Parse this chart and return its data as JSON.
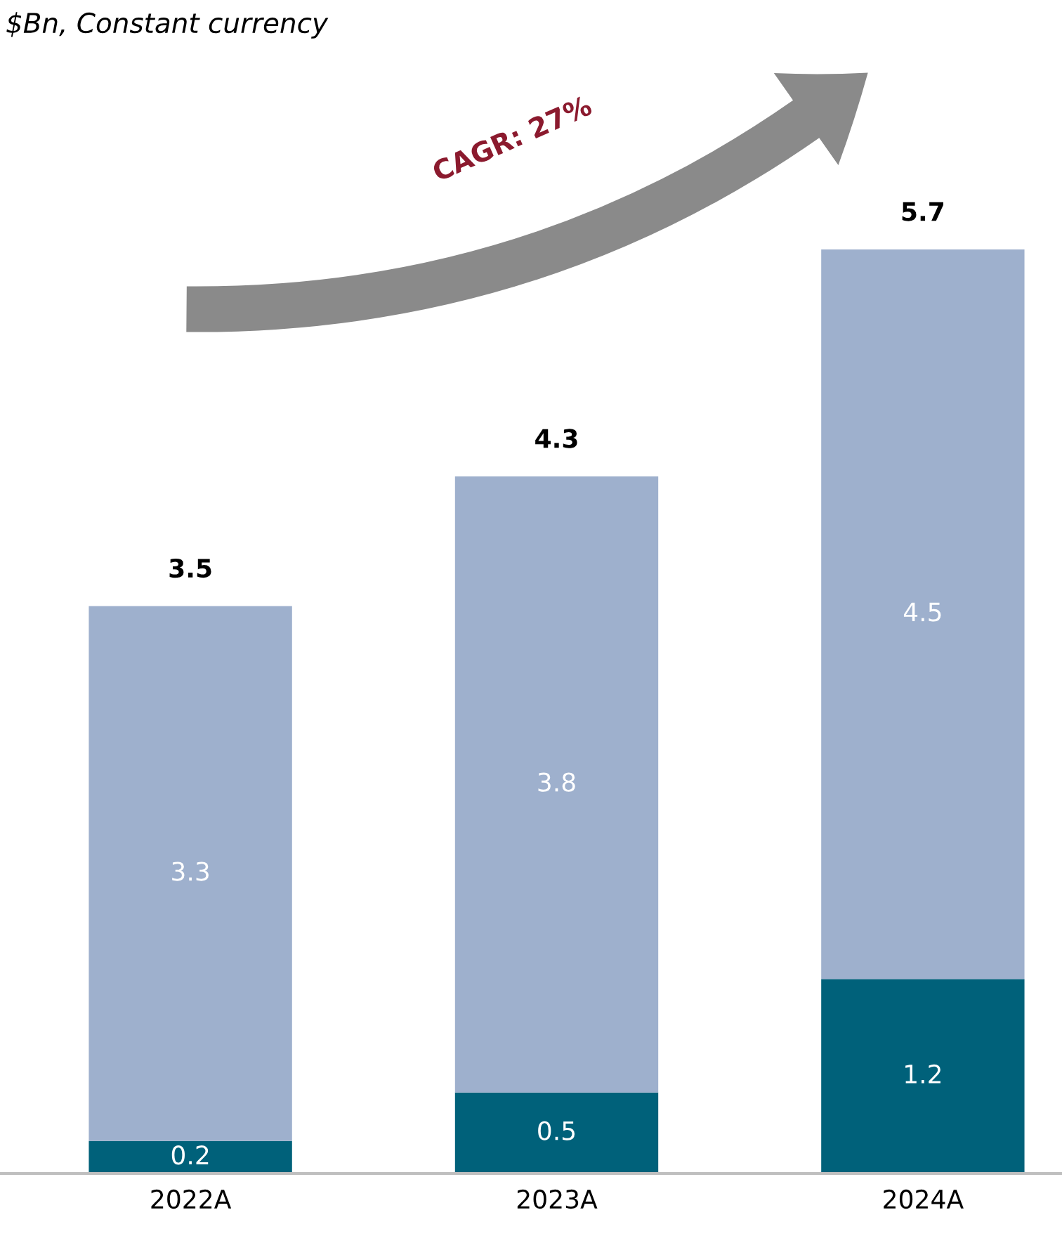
{
  "chart_data": {
    "type": "bar",
    "stacked": true,
    "title": "$Bn, Constant currency",
    "categories": [
      "2022A",
      "2023A",
      "2024A"
    ],
    "series": [
      {
        "color": "#00617a",
        "values": [
          0.2,
          0.5,
          1.2
        ]
      },
      {
        "color": "#9eb0cd",
        "values": [
          3.3,
          3.8,
          4.5
        ]
      }
    ],
    "data_labels": true,
    "totals": [
      "3.5",
      "4.3",
      "5.7"
    ],
    "annotations": [
      "CAGR: 27%"
    ],
    "legend": false,
    "grid": false,
    "tick_labels": "x"
  }
}
